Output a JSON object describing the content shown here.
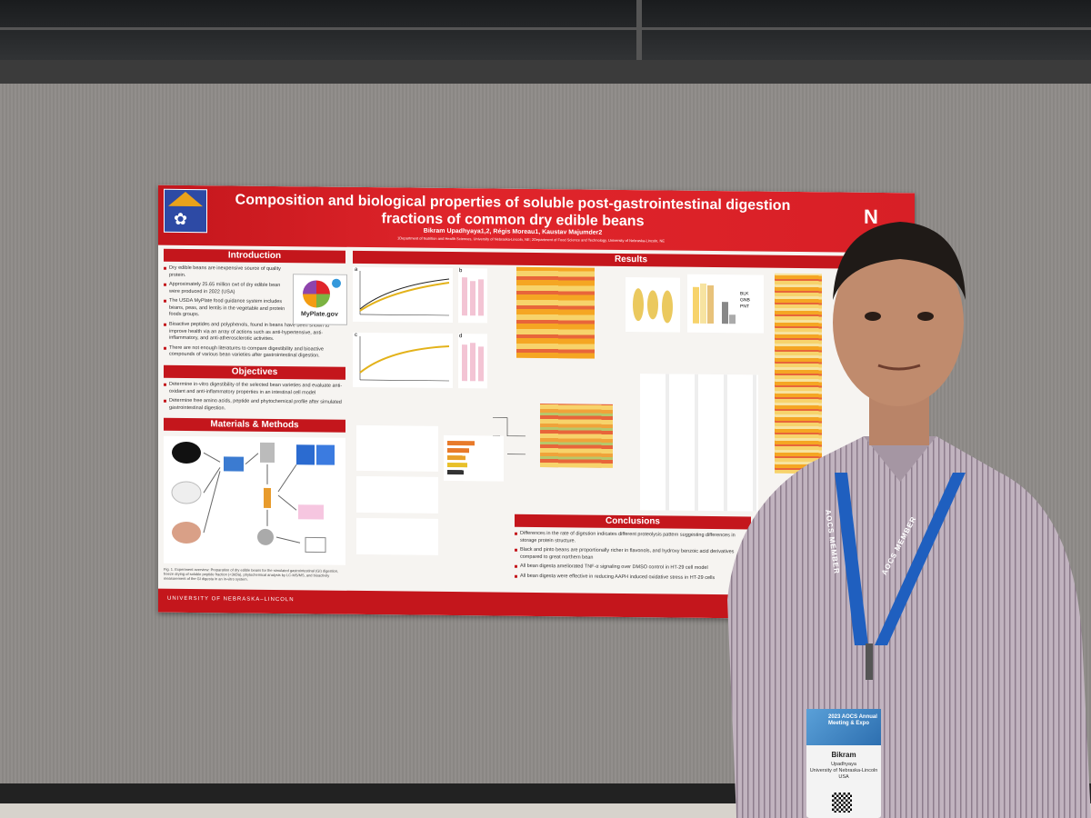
{
  "poster": {
    "title_line1": "Composition and biological properties of soluble post-gastrointestinal digestion",
    "title_line2": "fractions of common dry edible beans",
    "authors": "Bikram Upadhyaya1,2, Régis Moreau1, Kaustav Majumder2",
    "affiliations": "1Department of Nutrition and Health Sciences, University of Nebraska-Lincoln, NE; 2Department of Food Science and Technology, University of Nebraska-Lincoln, NE",
    "logo_letter": "N",
    "sections": {
      "introduction": "Introduction",
      "objectives": "Objectives",
      "methods": "Materials & Methods",
      "results": "Results",
      "conclusions": "Conclusions"
    },
    "intro_bullets": [
      "Dry edible beans are inexpensive source of quality protein.",
      "Approximately 25.65 million cwt of dry edible bean were produced in 2022 (USA)",
      "The USDA MyPlate food guidance system includes beans, peas, and lentils in the vegetable and protein foods groups.",
      "Bioactive peptides and polyphenols, found in beans have been shown to improve health via an array of actions such as anti-hypertensive, anti-inflammatory, and anti-atherosclerotic activities.",
      "There are not enough literatures to compare digestibility and bioactive compounds of various bean varieties after gastrointestinal digestion."
    ],
    "myplate_label": "MyPlate.gov",
    "objective_bullets": [
      "Determine in-vitro digestibility of the selected bean varieties and evaluate anti-oxidant and anti-inflammatory properties in an intestinal cell model",
      "Determine free amino acids, peptide and phytochemical profile after simulated gastrointestinal digestion."
    ],
    "methods_items": [
      "Black Beans (BLK)",
      "Great Northern Beans (GNB)",
      "Pinto Beans (PNT)",
      "Freeze Drying",
      "Simulated gastrointestinal Digestion",
      "Membrane Filtration",
      "Centrifuge",
      "Intestinal Epithelial Cells (HT-29)",
      "Data Analysis"
    ],
    "methods_caption": "Fig. 1. Experiment overview: Preparation of dry edible beans for the simulated gastrointestinal (GI) digestion, freeze drying of soluble peptide fraction (<3kDa), phytochemical analysis by LC-MS/MS, and bioactivity measurement of the GI digesta in an in-vitro system.",
    "conclusion_bullets": [
      "Differences in the rate of digestion indicates different proteolysis pattern suggesting differences in storage protein structure.",
      "Black and pinto beans are proportionally richer in flavonols, and hydroxy benzoic acid derivatives compared to great northern bean",
      "All bean digesta ameliorated TNF-α signaling over DMSO control in HT-29 cell model",
      "All bean digesta were effective in reducing AAPH induced oxidative stress in HT-29 cells"
    ],
    "fig_labels": [
      "a",
      "b",
      "c",
      "d"
    ],
    "legend_items": [
      "BLK",
      "GNB",
      "PNT"
    ],
    "footer": "UNIVERSITY OF NEBRASKA–LINCOLN"
  },
  "badge": {
    "event": "2023 AOCS Annual Meeting & Expo",
    "name": "Bikram",
    "surname": "Upadhyaya",
    "org": "University of Nebraska-Lincoln",
    "country": "USA"
  },
  "lanyard": {
    "text_left": "AOCS MEMBER",
    "text_right": "AOCS MEMBER"
  },
  "colors": {
    "poster_red": "#c4161c",
    "board_gray": "#8e8b88",
    "lanyard_blue": "#1f5fbf",
    "shirt": "#b8a9b6"
  }
}
